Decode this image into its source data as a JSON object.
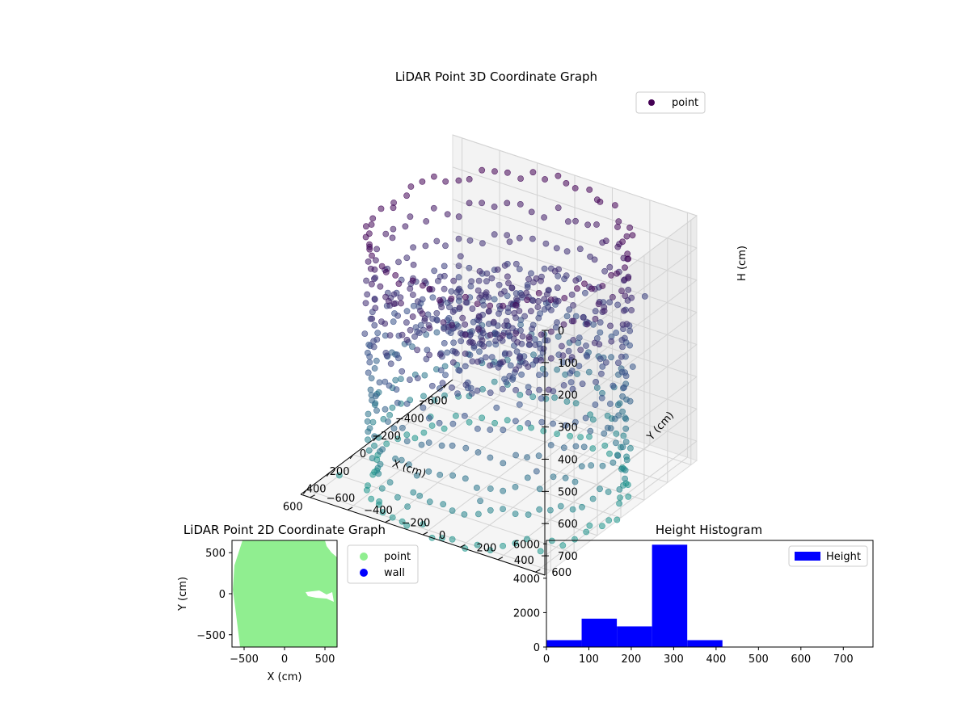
{
  "chart_data": [
    {
      "type": "scatter",
      "projection": "3d",
      "title": "LiDAR Point 3D Coordinate Graph",
      "xlabel": "X (cm)",
      "ylabel": "Y (cm)",
      "zlabel": "H (cm)",
      "x_ticks": [
        "−600",
        "−400",
        "−200",
        "0",
        "200",
        "400",
        "600"
      ],
      "y_ticks": [
        "−600",
        "−400",
        "−200",
        "0",
        "200",
        "400",
        "600"
      ],
      "z_ticks": [
        "0",
        "100",
        "200",
        "300",
        "400",
        "500",
        "600",
        "700"
      ],
      "xlim": [
        -650,
        650
      ],
      "ylim": [
        -650,
        650
      ],
      "zlim": [
        0,
        760
      ],
      "z_inverted": true,
      "legend": {
        "label": "point",
        "placement": "top-right"
      },
      "colormap": [
        "#440154",
        "#3b528b",
        "#21918c"
      ],
      "series": [
        {
          "name": "point",
          "description": "circular wall of points at radius ~600, heights 0-760, plus inner clutter near H~300"
        }
      ]
    },
    {
      "type": "scatter",
      "title": "LiDAR Point 2D Coordinate Graph",
      "xlabel": "X (cm)",
      "ylabel": "Y (cm)",
      "x_ticks": [
        "−500",
        "0",
        "500"
      ],
      "y_ticks": [
        "−500",
        "0",
        "500"
      ],
      "xlim": [
        -650,
        650
      ],
      "ylim": [
        -650,
        650
      ],
      "legend": {
        "placement": "outside-right"
      },
      "series": [
        {
          "name": "point",
          "color": "#90ee90"
        },
        {
          "name": "wall",
          "color": "#0000ff"
        }
      ]
    },
    {
      "type": "bar",
      "subtype": "histogram",
      "title": "Height Histogram",
      "x_ticks": [
        "0",
        "100",
        "200",
        "300",
        "400",
        "500",
        "600",
        "700"
      ],
      "y_ticks": [
        "0",
        "2000",
        "4000",
        "6000"
      ],
      "xlim": [
        0,
        770
      ],
      "ylim": [
        0,
        6200
      ],
      "legend": {
        "placement": "top-right"
      },
      "series": [
        {
          "name": "Height",
          "color": "#0000ff",
          "bins": [
            {
              "x0": 0,
              "x1": 83,
              "count": 400
            },
            {
              "x0": 83,
              "x1": 166,
              "count": 1650
            },
            {
              "x0": 166,
              "x1": 249,
              "count": 1200
            },
            {
              "x0": 249,
              "x1": 332,
              "count": 5950
            },
            {
              "x0": 332,
              "x1": 415,
              "count": 400
            },
            {
              "x0": 415,
              "x1": 498,
              "count": 0
            },
            {
              "x0": 498,
              "x1": 581,
              "count": 0
            },
            {
              "x0": 581,
              "x1": 664,
              "count": 0
            },
            {
              "x0": 664,
              "x1": 747,
              "count": 0
            }
          ]
        }
      ]
    }
  ]
}
